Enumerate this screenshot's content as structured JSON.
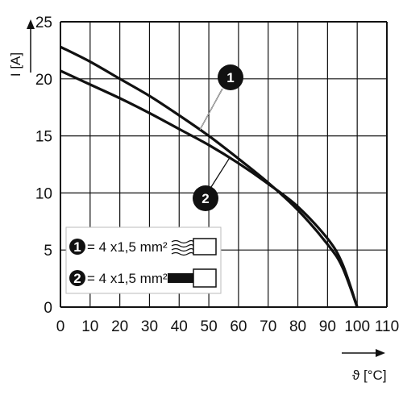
{
  "chart_data": {
    "type": "line",
    "xlabel": "ϑ [°C]",
    "ylabel": "I [A]",
    "xlim": [
      0,
      110
    ],
    "ylim": [
      0,
      25
    ],
    "xticks": [
      0,
      10,
      20,
      30,
      40,
      50,
      60,
      70,
      80,
      90,
      100,
      110
    ],
    "yticks": [
      0,
      5,
      10,
      15,
      20,
      25
    ],
    "grid": true,
    "series": [
      {
        "name": "1",
        "x": [
          0,
          10,
          20,
          30,
          40,
          50,
          60,
          70,
          80,
          90,
          95,
          100
        ],
        "y": [
          22.8,
          21.5,
          20.0,
          18.5,
          16.8,
          15.0,
          13.0,
          10.9,
          8.5,
          5.5,
          3.5,
          0
        ]
      },
      {
        "name": "2",
        "x": [
          0,
          10,
          20,
          30,
          40,
          50,
          60,
          70,
          80,
          90,
          95,
          100
        ],
        "y": [
          20.7,
          19.5,
          18.3,
          17.0,
          15.6,
          14.2,
          12.6,
          10.8,
          8.8,
          6.0,
          3.8,
          0
        ]
      }
    ],
    "legend": {
      "placement": "lower-left",
      "entries": [
        {
          "num": "1",
          "text": "= 4 x1,5 mm²"
        },
        {
          "num": "2",
          "text": "= 4 x1,5 mm²"
        }
      ]
    },
    "callouts": [
      {
        "num": "1",
        "series": 0
      },
      {
        "num": "2",
        "series": 1
      }
    ],
    "colors": {
      "line": "#111111",
      "grid": "#111111",
      "background": "#ffffff"
    }
  }
}
